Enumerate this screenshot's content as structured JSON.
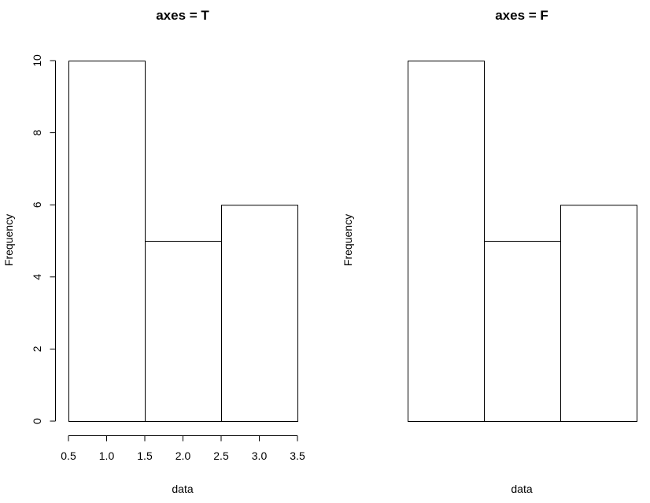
{
  "chart_data": [
    {
      "type": "bar",
      "title": "axes = T",
      "xlabel": "data",
      "ylabel": "Frequency",
      "bins": [
        [
          0.5,
          1.5
        ],
        [
          1.5,
          2.5
        ],
        [
          2.5,
          3.5
        ]
      ],
      "values": [
        10,
        5,
        6
      ],
      "xlim": [
        0.5,
        3.5
      ],
      "ylim": [
        0,
        10
      ],
      "axes": true,
      "xticks": [
        "0.5",
        "1.0",
        "1.5",
        "2.0",
        "2.5",
        "3.0",
        "3.5"
      ],
      "yticks": [
        "0",
        "2",
        "4",
        "6",
        "8",
        "10"
      ]
    },
    {
      "type": "bar",
      "title": "axes = F",
      "xlabel": "data",
      "ylabel": "Frequency",
      "bins": [
        [
          0.5,
          1.5
        ],
        [
          1.5,
          2.5
        ],
        [
          2.5,
          3.5
        ]
      ],
      "values": [
        10,
        5,
        6
      ],
      "xlim": [
        0.5,
        3.5
      ],
      "ylim": [
        0,
        10
      ],
      "axes": false
    }
  ]
}
